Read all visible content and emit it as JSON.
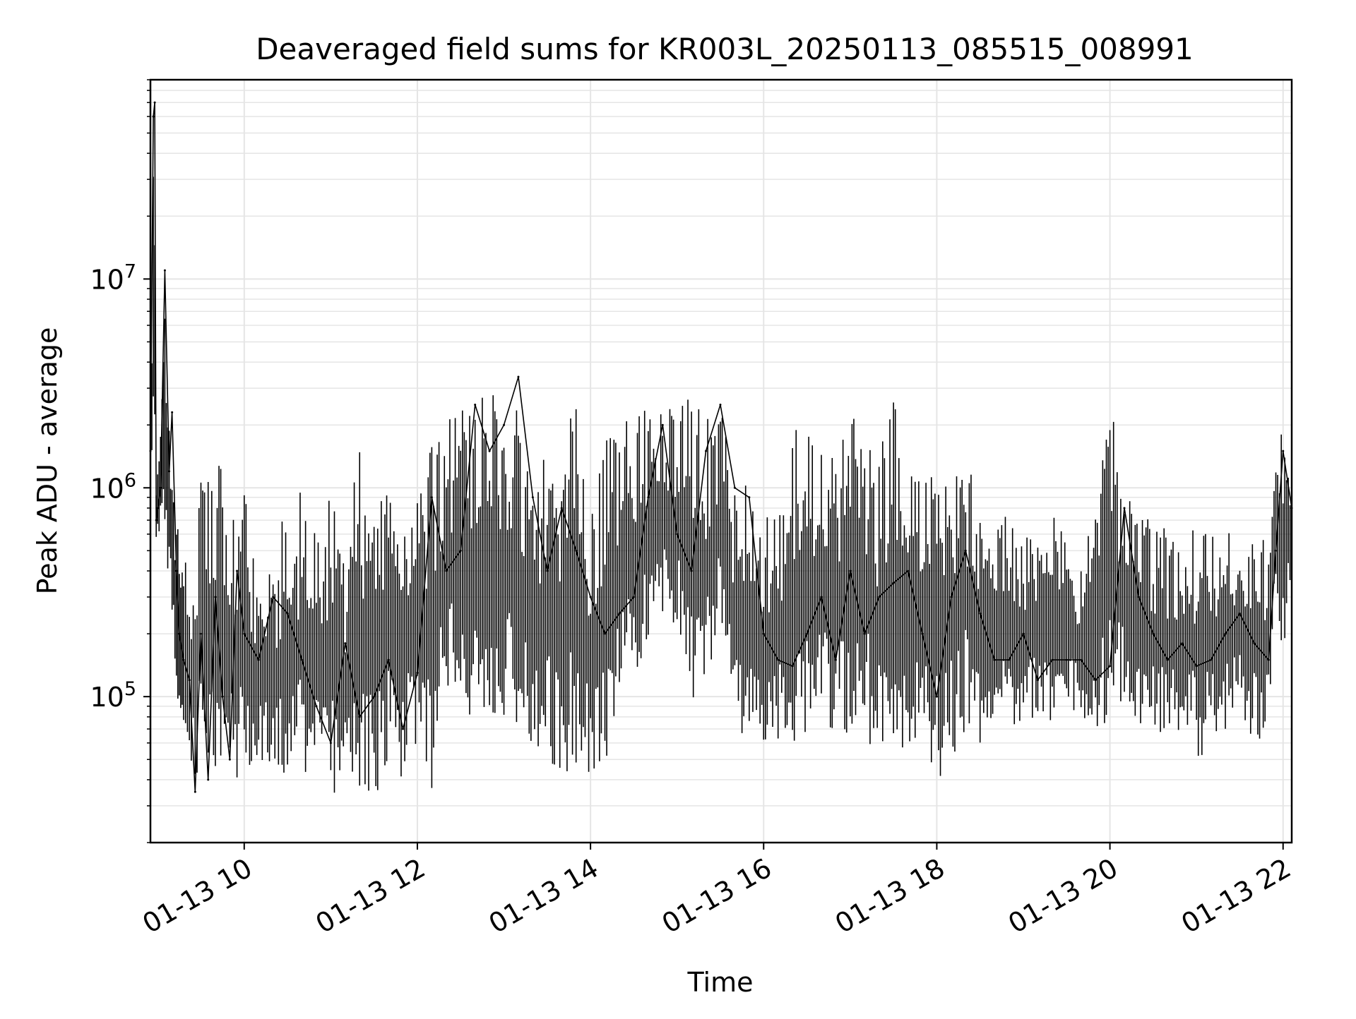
{
  "chart_data": {
    "type": "line",
    "title": "Deaveraged field sums for KR003L_20250113_085515_008991",
    "xlabel": "Time",
    "ylabel": "Peak ADU - average",
    "yscale": "log",
    "ylim": [
      20000,
      90000000
    ],
    "xlim": [
      "2025-01-13 08:55",
      "2025-01-13 22:06"
    ],
    "x_ticks": [
      {
        "time": "2025-01-13 10:00",
        "label": "01-13 10"
      },
      {
        "time": "2025-01-13 12:00",
        "label": "01-13 12"
      },
      {
        "time": "2025-01-13 14:00",
        "label": "01-13 14"
      },
      {
        "time": "2025-01-13 16:00",
        "label": "01-13 16"
      },
      {
        "time": "2025-01-13 18:00",
        "label": "01-13 18"
      },
      {
        "time": "2025-01-13 20:00",
        "label": "01-13 20"
      },
      {
        "time": "2025-01-13 22:00",
        "label": "01-13 22"
      }
    ],
    "y_ticks": [
      {
        "value": 100000,
        "base": "10",
        "exp": "5"
      },
      {
        "value": 1000000,
        "base": "10",
        "exp": "6"
      },
      {
        "value": 10000000,
        "base": "10",
        "exp": "7"
      }
    ],
    "grid": true,
    "line_color": "#000000",
    "grid_color": "#e5e5e5",
    "series": [
      {
        "x": [
          "2025-01-13 08:55",
          "2025-01-13 08:57",
          "2025-01-13 08:58",
          "2025-01-13 08:59",
          "2025-01-13 09:00",
          "2025-01-13 09:02",
          "2025-01-13 09:05",
          "2025-01-13 09:08",
          "2025-01-13 09:10",
          "2025-01-13 09:13",
          "2025-01-13 09:15",
          "2025-01-13 09:18",
          "2025-01-13 09:22",
          "2025-01-13 09:26",
          "2025-01-13 09:30",
          "2025-01-13 09:35",
          "2025-01-13 09:40",
          "2025-01-13 09:45",
          "2025-01-13 09:50",
          "2025-01-13 09:55",
          "2025-01-13 10:00",
          "2025-01-13 10:10",
          "2025-01-13 10:20",
          "2025-01-13 10:30",
          "2025-01-13 10:40",
          "2025-01-13 10:50",
          "2025-01-13 11:00",
          "2025-01-13 11:10",
          "2025-01-13 11:20",
          "2025-01-13 11:30",
          "2025-01-13 11:40",
          "2025-01-13 11:50",
          "2025-01-13 12:00",
          "2025-01-13 12:10",
          "2025-01-13 12:20",
          "2025-01-13 12:30",
          "2025-01-13 12:40",
          "2025-01-13 12:50",
          "2025-01-13 13:00",
          "2025-01-13 13:10",
          "2025-01-13 13:20",
          "2025-01-13 13:30",
          "2025-01-13 13:40",
          "2025-01-13 13:50",
          "2025-01-13 14:00",
          "2025-01-13 14:10",
          "2025-01-13 14:20",
          "2025-01-13 14:30",
          "2025-01-13 14:40",
          "2025-01-13 14:50",
          "2025-01-13 15:00",
          "2025-01-13 15:10",
          "2025-01-13 15:20",
          "2025-01-13 15:30",
          "2025-01-13 15:40",
          "2025-01-13 15:50",
          "2025-01-13 16:00",
          "2025-01-13 16:10",
          "2025-01-13 16:20",
          "2025-01-13 16:30",
          "2025-01-13 16:40",
          "2025-01-13 16:50",
          "2025-01-13 17:00",
          "2025-01-13 17:10",
          "2025-01-13 17:20",
          "2025-01-13 17:30",
          "2025-01-13 17:40",
          "2025-01-13 17:50",
          "2025-01-13 18:00",
          "2025-01-13 18:10",
          "2025-01-13 18:20",
          "2025-01-13 18:30",
          "2025-01-13 18:40",
          "2025-01-13 18:50",
          "2025-01-13 19:00",
          "2025-01-13 19:10",
          "2025-01-13 19:20",
          "2025-01-13 19:30",
          "2025-01-13 19:40",
          "2025-01-13 19:50",
          "2025-01-13 20:00",
          "2025-01-13 20:10",
          "2025-01-13 20:20",
          "2025-01-13 20:30",
          "2025-01-13 20:40",
          "2025-01-13 20:50",
          "2025-01-13 21:00",
          "2025-01-13 21:10",
          "2025-01-13 21:20",
          "2025-01-13 21:30",
          "2025-01-13 21:40",
          "2025-01-13 21:50",
          "2025-01-13 21:55",
          "2025-01-13 22:00",
          "2025-01-13 22:06"
        ],
        "y": [
          1500000,
          60000000,
          70000000,
          700000,
          800000,
          1000000,
          11000000,
          1200000,
          2300000,
          400000,
          200000,
          150000,
          120000,
          35000,
          200000,
          40000,
          300000,
          100000,
          50000,
          400000,
          200000,
          150000,
          300000,
          250000,
          150000,
          90000,
          60000,
          180000,
          80000,
          100000,
          150000,
          70000,
          130000,
          900000,
          400000,
          500000,
          2500000,
          1500000,
          2000000,
          3400000,
          900000,
          400000,
          800000,
          500000,
          300000,
          200000,
          250000,
          300000,
          900000,
          2000000,
          600000,
          400000,
          1500000,
          2500000,
          1000000,
          900000,
          200000,
          150000,
          140000,
          200000,
          300000,
          150000,
          400000,
          200000,
          300000,
          350000,
          400000,
          200000,
          100000,
          300000,
          500000,
          250000,
          150000,
          150000,
          200000,
          120000,
          150000,
          150000,
          150000,
          120000,
          140000,
          800000,
          300000,
          200000,
          150000,
          180000,
          140000,
          150000,
          200000,
          250000,
          180000,
          150000,
          500000,
          1500000,
          800000
        ],
        "y_min": [
          500000,
          800000,
          900000,
          550000,
          500000,
          600000,
          700000,
          300000,
          180000,
          100000,
          90000,
          60000,
          50000,
          35000,
          40000,
          45000,
          40000,
          45000,
          42000,
          38000,
          40000,
          45000,
          40000,
          38000,
          40000,
          42000,
          33000,
          38000,
          37000,
          33000,
          45000,
          40000,
          35000,
          35000,
          100000,
          110000,
          50000,
          70000,
          80000,
          60000,
          55000,
          45000,
          40000,
          45000,
          35000,
          40000,
          90000,
          120000,
          150000,
          200000,
          230000,
          100000,
          90000,
          250000,
          70000,
          55000,
          60000,
          60000,
          55000,
          65000,
          70000,
          55000,
          60000,
          65000,
          50000,
          60000,
          55000,
          55000,
          40000,
          45000,
          70000,
          50000,
          80000,
          65000,
          70000,
          75000,
          75000,
          80000,
          75000,
          70000,
          70000,
          90000,
          75000,
          70000,
          60000,
          70000,
          50000,
          55000,
          70000,
          75000,
          60000,
          65000,
          250000,
          150000,
          280000
        ],
        "y_max": [
          1500000,
          60000000,
          70000000,
          1200000,
          1500000,
          2200000,
          11000000,
          2300000,
          1700000,
          1100000,
          900000,
          600000,
          550000,
          500000,
          1600000,
          1100000,
          1400000,
          1300000,
          1000000,
          800000,
          1000000,
          450000,
          460000,
          900000,
          1000000,
          600000,
          1300000,
          500000,
          1700000,
          1200000,
          1000000,
          1300000,
          1500000,
          1900000,
          2100000,
          2700000,
          3000000,
          3100000,
          3400000,
          2400000,
          1100000,
          2000000,
          1300000,
          3000000,
          1000000,
          2000000,
          2200000,
          2600000,
          2800000,
          2900000,
          2500000,
          3300000,
          2200000,
          2500000,
          1000000,
          1100000,
          700000,
          800000,
          2100000,
          1900000,
          2000000,
          1700000,
          2200000,
          2100000,
          1500000,
          2600000,
          1800000,
          1300000,
          2300000,
          1500000,
          1800000,
          1200000,
          620000,
          800000,
          560000,
          640000,
          770000,
          550000,
          530000,
          760000,
          2600000,
          1200000,
          700000,
          720000,
          650000,
          620000,
          730000,
          700000,
          690000,
          640000,
          600000,
          570000,
          1600000,
          2200000,
          1400000
        ]
      }
    ]
  }
}
